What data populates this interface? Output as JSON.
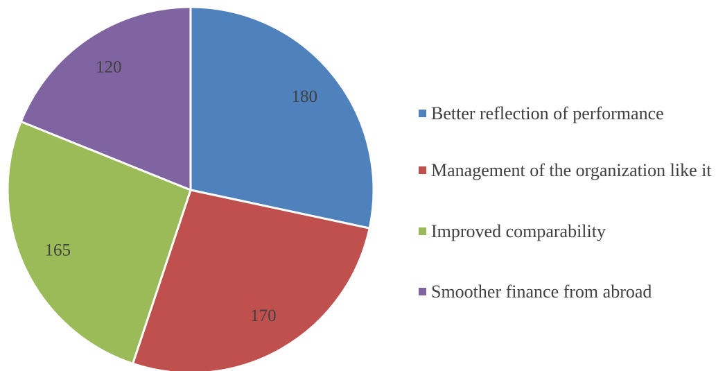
{
  "chart_data": {
    "type": "pie",
    "categories": [
      "Better reflection of performance",
      "Management of the organization like it",
      "Improved comparability",
      "Smoother finance from abroad"
    ],
    "values": [
      180,
      170,
      165,
      120
    ],
    "colors": [
      "#4f81bd",
      "#c0504d",
      "#9bbb59",
      "#8064a2"
    ],
    "legend": "right"
  }
}
